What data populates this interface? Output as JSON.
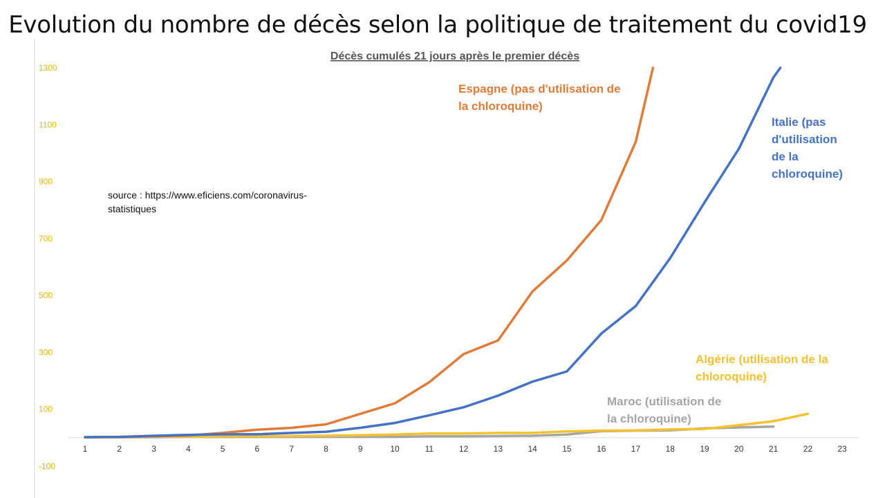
{
  "slide": {
    "title": "Evolution du nombre de décès selon la politique de traitement du covid19"
  },
  "chart_data": {
    "type": "line",
    "title": "Décès cumulés 21 jours après le premier décès",
    "source_text": "source : https://www.eficiens.com/coronavirus-statistiques",
    "xlabel": "",
    "ylabel": "",
    "x": [
      1,
      2,
      3,
      4,
      5,
      6,
      7,
      8,
      9,
      10,
      11,
      12,
      13,
      14,
      15,
      16,
      17,
      18,
      19,
      20,
      21,
      22,
      23
    ],
    "y_ticks": [
      1300,
      1100,
      900,
      700,
      500,
      300,
      100,
      -100
    ],
    "xlim": [
      1,
      23
    ],
    "ylim": [
      -100,
      1300
    ],
    "grid": false,
    "legend": "none (series labelled by on-chart annotations)",
    "series": [
      {
        "name": "Espagne (pas d'utilisation de la chloroquine)",
        "label_lines": [
          "Espagne (pas d'utilisation de",
          "la chloroquine)"
        ],
        "color": "#e07b39",
        "x": [
          1,
          2,
          3,
          4,
          5,
          6,
          7,
          8,
          9,
          10,
          11,
          12,
          13,
          14,
          15,
          16,
          17,
          17.5
        ],
        "values": [
          2,
          3,
          5,
          8,
          17,
          28,
          35,
          47,
          84,
          121,
          195,
          294,
          342,
          514,
          623,
          765,
          1040,
          1300
        ]
      },
      {
        "name": "Italie (pas d'utilisation de la chloroquine)",
        "label_lines": [
          "Italie (pas",
          "d'utilisation",
          "de la",
          "chloroquine)"
        ],
        "color": "#4472c4",
        "x": [
          1,
          2,
          3,
          4,
          5,
          6,
          7,
          8,
          9,
          10,
          11,
          12,
          13,
          14,
          15,
          16,
          17,
          18,
          19,
          20,
          21,
          21.2
        ],
        "values": [
          2,
          3,
          7,
          10,
          12,
          12,
          17,
          21,
          35,
          52,
          79,
          107,
          148,
          197,
          233,
          366,
          463,
          631,
          827,
          1016,
          1266,
          1300
        ]
      },
      {
        "name": "Algérie (utilisation de la chloroquine)",
        "label_lines": [
          "Algérie (utilisation de la",
          "chloroquine)"
        ],
        "color": "#f5c12e",
        "x": [
          1,
          2,
          3,
          4,
          5,
          6,
          7,
          8,
          9,
          10,
          11,
          12,
          13,
          14,
          15,
          16,
          17,
          18,
          19,
          20,
          21,
          22
        ],
        "values": [
          1,
          2,
          4,
          4,
          5,
          5,
          6,
          7,
          9,
          11,
          15,
          15,
          17,
          17,
          22,
          25,
          26,
          29,
          31,
          44,
          58,
          84
        ]
      },
      {
        "name": "Maroc (utilisation de la chloroquine)",
        "label_lines": [
          "Maroc (utilisation de",
          "la chloroquine)"
        ],
        "color": "#a5a5a5",
        "x": [
          1,
          2,
          3,
          4,
          5,
          6,
          7,
          8,
          9,
          10,
          11,
          12,
          13,
          14,
          15,
          16,
          17,
          18,
          19,
          20,
          21
        ],
        "values": [
          1,
          1,
          2,
          3,
          3,
          3,
          3,
          3,
          3,
          3,
          5,
          5,
          6,
          7,
          11,
          23,
          25,
          26,
          33,
          36,
          39
        ]
      }
    ]
  }
}
